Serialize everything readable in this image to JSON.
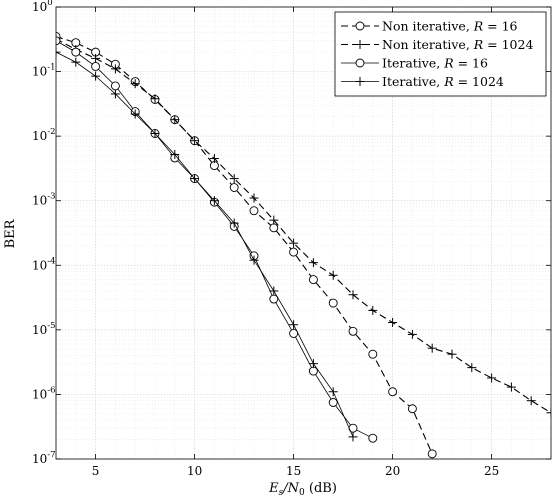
{
  "chart_data": {
    "type": "line",
    "xlabel_main": "E",
    "xlabel_sub": "s",
    "xlabel_mid": "/N",
    "xlabel_sub2": "0",
    "xlabel_unit": " (dB)",
    "ylabel": "BER",
    "xlim": [
      3,
      28
    ],
    "ylim": [
      1e-07,
      1
    ],
    "yscale": "log",
    "grid": true,
    "minor_grid": true,
    "legend_placement": "top-right",
    "x_ticks": [
      {
        "value": 5,
        "label": "5"
      },
      {
        "value": 10,
        "label": "10"
      },
      {
        "value": 15,
        "label": "15"
      },
      {
        "value": 20,
        "label": "20"
      },
      {
        "value": 25,
        "label": "25"
      }
    ],
    "y_ticks": [
      {
        "value": 1,
        "base": "10",
        "exp": "0"
      },
      {
        "value": 0.1,
        "base": "10",
        "exp": "-1"
      },
      {
        "value": 0.01,
        "base": "10",
        "exp": "-2"
      },
      {
        "value": 0.001,
        "base": "10",
        "exp": "-3"
      },
      {
        "value": 0.0001,
        "base": "10",
        "exp": "-4"
      },
      {
        "value": 1e-05,
        "base": "10",
        "exp": "-5"
      },
      {
        "value": 1e-06,
        "base": "10",
        "exp": "-6"
      },
      {
        "value": 1e-07,
        "base": "10",
        "exp": "-7"
      }
    ],
    "series": [
      {
        "name": "Non iterative, R = 16",
        "legend_prefix": "Non iterative, ",
        "legend_var": "R",
        "legend_value": " = 16",
        "dash": true,
        "marker": "circle",
        "x": [
          3,
          4,
          5,
          6,
          7,
          8,
          9,
          10,
          11,
          12,
          13,
          14,
          15,
          16,
          17,
          18,
          19,
          20,
          21,
          22
        ],
        "y": [
          0.35,
          0.28,
          0.2,
          0.13,
          0.07,
          0.037,
          0.018,
          0.0085,
          0.0035,
          0.0016,
          0.0007,
          0.00038,
          0.00016,
          6e-05,
          2.6e-05,
          9.5e-06,
          4.2e-06,
          1.1e-06,
          6e-07,
          1.2e-07
        ]
      },
      {
        "name": "Non iterative, R = 1024",
        "legend_prefix": "Non iterative, ",
        "legend_var": "R",
        "legend_value": " = 1024",
        "dash": true,
        "marker": "plus",
        "x": [
          3,
          4,
          5,
          6,
          7,
          8,
          9,
          10,
          11,
          12,
          13,
          14,
          15,
          16,
          17,
          18,
          19,
          20,
          21,
          22,
          23,
          24,
          25,
          26,
          27,
          28
        ],
        "y": [
          0.32,
          0.22,
          0.16,
          0.11,
          0.065,
          0.038,
          0.018,
          0.0085,
          0.0045,
          0.0022,
          0.0011,
          0.0005,
          0.00022,
          0.00011,
          7e-05,
          3.5e-05,
          2e-05,
          1.3e-05,
          8.5e-06,
          5.2e-06,
          4.2e-06,
          2.6e-06,
          1.8e-06,
          1.3e-06,
          8e-07,
          5.2e-07
        ]
      },
      {
        "name": "Iterative, R = 16",
        "legend_prefix": "Iterative, ",
        "legend_var": "R",
        "legend_value": " = 16",
        "dash": false,
        "marker": "circle",
        "x": [
          3,
          4,
          5,
          6,
          7,
          8,
          9,
          10,
          11,
          12,
          13,
          14,
          15,
          16,
          17,
          18,
          19
        ],
        "y": [
          0.3,
          0.2,
          0.12,
          0.06,
          0.024,
          0.011,
          0.0046,
          0.0022,
          0.00095,
          0.0004,
          0.00014,
          3e-05,
          8.8e-06,
          2.3e-06,
          7.5e-07,
          3e-07,
          2.1e-07
        ]
      },
      {
        "name": "Iterative, R = 1024",
        "legend_prefix": "Iterative, ",
        "legend_var": "R",
        "legend_value": " = 1024",
        "dash": false,
        "marker": "plus",
        "x": [
          3,
          4,
          5,
          6,
          7,
          8,
          9,
          10,
          11,
          12,
          13,
          14,
          15,
          16,
          17,
          18
        ],
        "y": [
          0.2,
          0.14,
          0.085,
          0.045,
          0.022,
          0.011,
          0.0052,
          0.0022,
          0.001,
          0.00045,
          0.00012,
          4e-05,
          1.2e-05,
          3e-06,
          1.1e-06,
          2.2e-07
        ]
      }
    ]
  }
}
